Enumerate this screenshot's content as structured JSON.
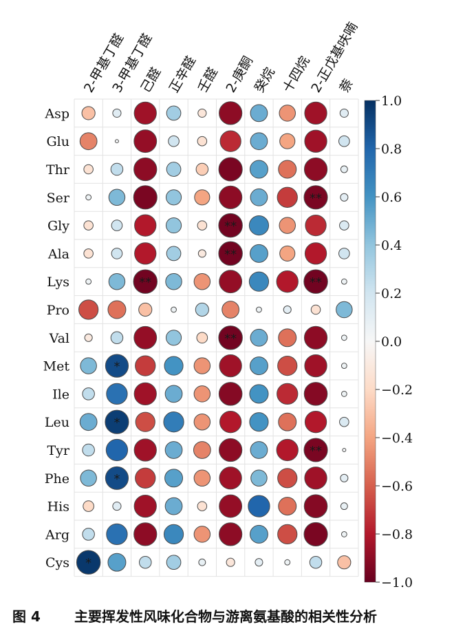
{
  "chart_data": {
    "type": "heatmap",
    "subtype": "correlation-circle-matrix",
    "columns": [
      "2-甲基丁醛",
      "3-甲基丁醛",
      "己醛",
      "正辛醛",
      "壬醛",
      "2-庚酮",
      "癸烷",
      "十四烷",
      "2-正戊基呋喃",
      "萘"
    ],
    "rows": [
      "Asp",
      "Glu",
      "Thr",
      "Ser",
      "Gly",
      "Ala",
      "Lys",
      "Pro",
      "Val",
      "Met",
      "Ile",
      "Leu",
      "Tyr",
      "Phe",
      "His",
      "Arg",
      "Cys"
    ],
    "values": [
      [
        -0.3,
        0.12,
        -0.85,
        0.35,
        -0.12,
        -0.9,
        0.5,
        -0.45,
        -0.85,
        0.12
      ],
      [
        -0.5,
        0.02,
        -0.88,
        0.2,
        -0.15,
        -0.75,
        0.5,
        -0.4,
        -0.85,
        0.2
      ],
      [
        -0.15,
        0.25,
        -0.9,
        0.35,
        -0.25,
        -0.95,
        0.55,
        -0.55,
        -0.9,
        0.08
      ],
      [
        0.05,
        0.45,
        -0.95,
        0.4,
        -0.4,
        -0.9,
        0.5,
        -0.7,
        -0.95,
        0.1
      ],
      [
        -0.15,
        0.2,
        -0.8,
        0.4,
        -0.15,
        -0.97,
        0.65,
        -0.45,
        -0.75,
        0.15
      ],
      [
        -0.15,
        0.2,
        -0.8,
        0.35,
        -0.1,
        -0.97,
        0.55,
        -0.4,
        -0.8,
        0.2
      ],
      [
        0.05,
        0.45,
        -0.97,
        0.45,
        -0.45,
        -0.88,
        0.65,
        -0.8,
        -0.97,
        0.05
      ],
      [
        -0.65,
        -0.55,
        -0.3,
        0.05,
        0.3,
        -0.5,
        0.05,
        0.1,
        -0.15,
        0.45
      ],
      [
        -0.1,
        0.25,
        -0.88,
        0.4,
        -0.2,
        -0.97,
        0.5,
        -0.55,
        -0.9,
        0.05
      ],
      [
        0.45,
        0.9,
        -0.7,
        0.6,
        -0.45,
        -0.85,
        0.55,
        -0.65,
        -0.85,
        0.05
      ],
      [
        0.25,
        0.75,
        -0.85,
        0.5,
        -0.45,
        -0.92,
        0.6,
        -0.75,
        -0.92,
        0.05
      ],
      [
        0.5,
        0.95,
        -0.65,
        0.7,
        -0.45,
        -0.8,
        0.6,
        -0.55,
        -0.8,
        0.15
      ],
      [
        0.25,
        0.8,
        -0.85,
        0.5,
        -0.5,
        -0.9,
        0.5,
        -0.8,
        -0.95,
        0.02
      ],
      [
        0.45,
        0.9,
        -0.7,
        0.55,
        -0.45,
        -0.85,
        0.45,
        -0.65,
        -0.85,
        0.1
      ],
      [
        -0.2,
        0.12,
        -0.85,
        0.5,
        -0.15,
        -0.88,
        0.8,
        -0.55,
        -0.92,
        0.08
      ],
      [
        0.25,
        0.75,
        -0.9,
        0.65,
        -0.45,
        -0.9,
        0.55,
        -0.65,
        -0.95,
        0.05
      ],
      [
        0.97,
        0.55,
        0.25,
        0.35,
        0.08,
        -0.12,
        0.1,
        0.05,
        0.25,
        -0.3
      ]
    ],
    "significance": [
      [
        "",
        "",
        "",
        "",
        "",
        "",
        "",
        "",
        "",
        ""
      ],
      [
        "",
        "",
        "",
        "",
        "",
        "",
        "",
        "",
        "",
        ""
      ],
      [
        "",
        "",
        "",
        "",
        "",
        "",
        "",
        "",
        "",
        ""
      ],
      [
        "",
        "",
        "",
        "",
        "",
        "",
        "",
        "",
        "**",
        ""
      ],
      [
        "",
        "",
        "",
        "",
        "",
        "**",
        "",
        "",
        "",
        ""
      ],
      [
        "",
        "",
        "",
        "",
        "",
        "**",
        "",
        "",
        "",
        ""
      ],
      [
        "",
        "",
        "**",
        "",
        "",
        "",
        "",
        "",
        "**",
        ""
      ],
      [
        "",
        "",
        "",
        "",
        "",
        "",
        "",
        "",
        "",
        ""
      ],
      [
        "",
        "",
        "",
        "",
        "",
        "**",
        "",
        "",
        "",
        ""
      ],
      [
        "",
        "*",
        "",
        "",
        "",
        "",
        "",
        "",
        "",
        ""
      ],
      [
        "",
        "",
        "",
        "",
        "",
        "",
        "",
        "",
        "",
        ""
      ],
      [
        "",
        "*",
        "",
        "",
        "",
        "",
        "",
        "",
        "",
        ""
      ],
      [
        "",
        "",
        "",
        "",
        "",
        "",
        "",
        "",
        "**",
        ""
      ],
      [
        "",
        "*",
        "",
        "",
        "",
        "",
        "",
        "",
        "",
        ""
      ],
      [
        "",
        "",
        "",
        "",
        "",
        "",
        "",
        "",
        "",
        ""
      ],
      [
        "",
        "",
        "",
        "",
        "",
        "",
        "",
        "",
        "",
        ""
      ],
      [
        "*",
        "",
        "",
        "",
        "",
        "",
        "",
        "",
        "",
        ""
      ]
    ],
    "colorbar": {
      "range": [
        -1.0,
        1.0
      ],
      "ticks": [
        1.0,
        0.8,
        0.6,
        0.4,
        0.2,
        0.0,
        -0.2,
        -0.4,
        -0.6,
        -0.8,
        -1.0
      ],
      "tick_labels": [
        "1.0",
        "0.8",
        "0.6",
        "0.4",
        "0.2",
        "0.0",
        "−0.2",
        "−0.4",
        "−0.6",
        "−0.8",
        "−1.0"
      ],
      "colormap": "RdBu",
      "stops": [
        "#67001f",
        "#b2182b",
        "#d6604d",
        "#f4a582",
        "#fddbc7",
        "#f7f7f7",
        "#d1e5f0",
        "#92c5de",
        "#4393c3",
        "#2166ac",
        "#053061"
      ]
    }
  },
  "caption": {
    "figure_number": "图 4",
    "title": "主要挥发性风味化合物与游离氨基酸的相关性分析"
  }
}
